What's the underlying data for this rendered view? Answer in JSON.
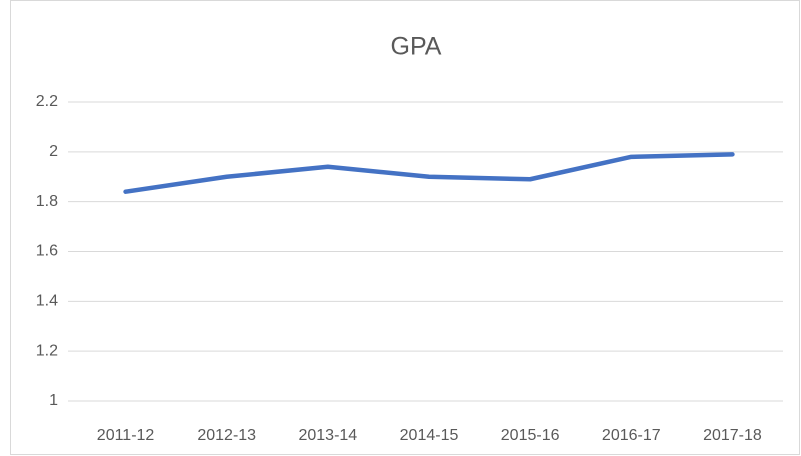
{
  "chart_data": {
    "type": "line",
    "title": "GPA",
    "categories": [
      "2011-12",
      "2012-13",
      "2013-14",
      "2014-15",
      "2015-16",
      "2016-17",
      "2017-18"
    ],
    "series": [
      {
        "name": "GPA",
        "color": "#4472c4",
        "values": [
          1.84,
          1.9,
          1.94,
          1.9,
          1.89,
          1.98,
          1.99
        ]
      }
    ],
    "ylim": [
      1,
      2.2
    ],
    "yticks": [
      1,
      1.2,
      1.4,
      1.6,
      1.8,
      2,
      2.2
    ],
    "grid": true
  }
}
